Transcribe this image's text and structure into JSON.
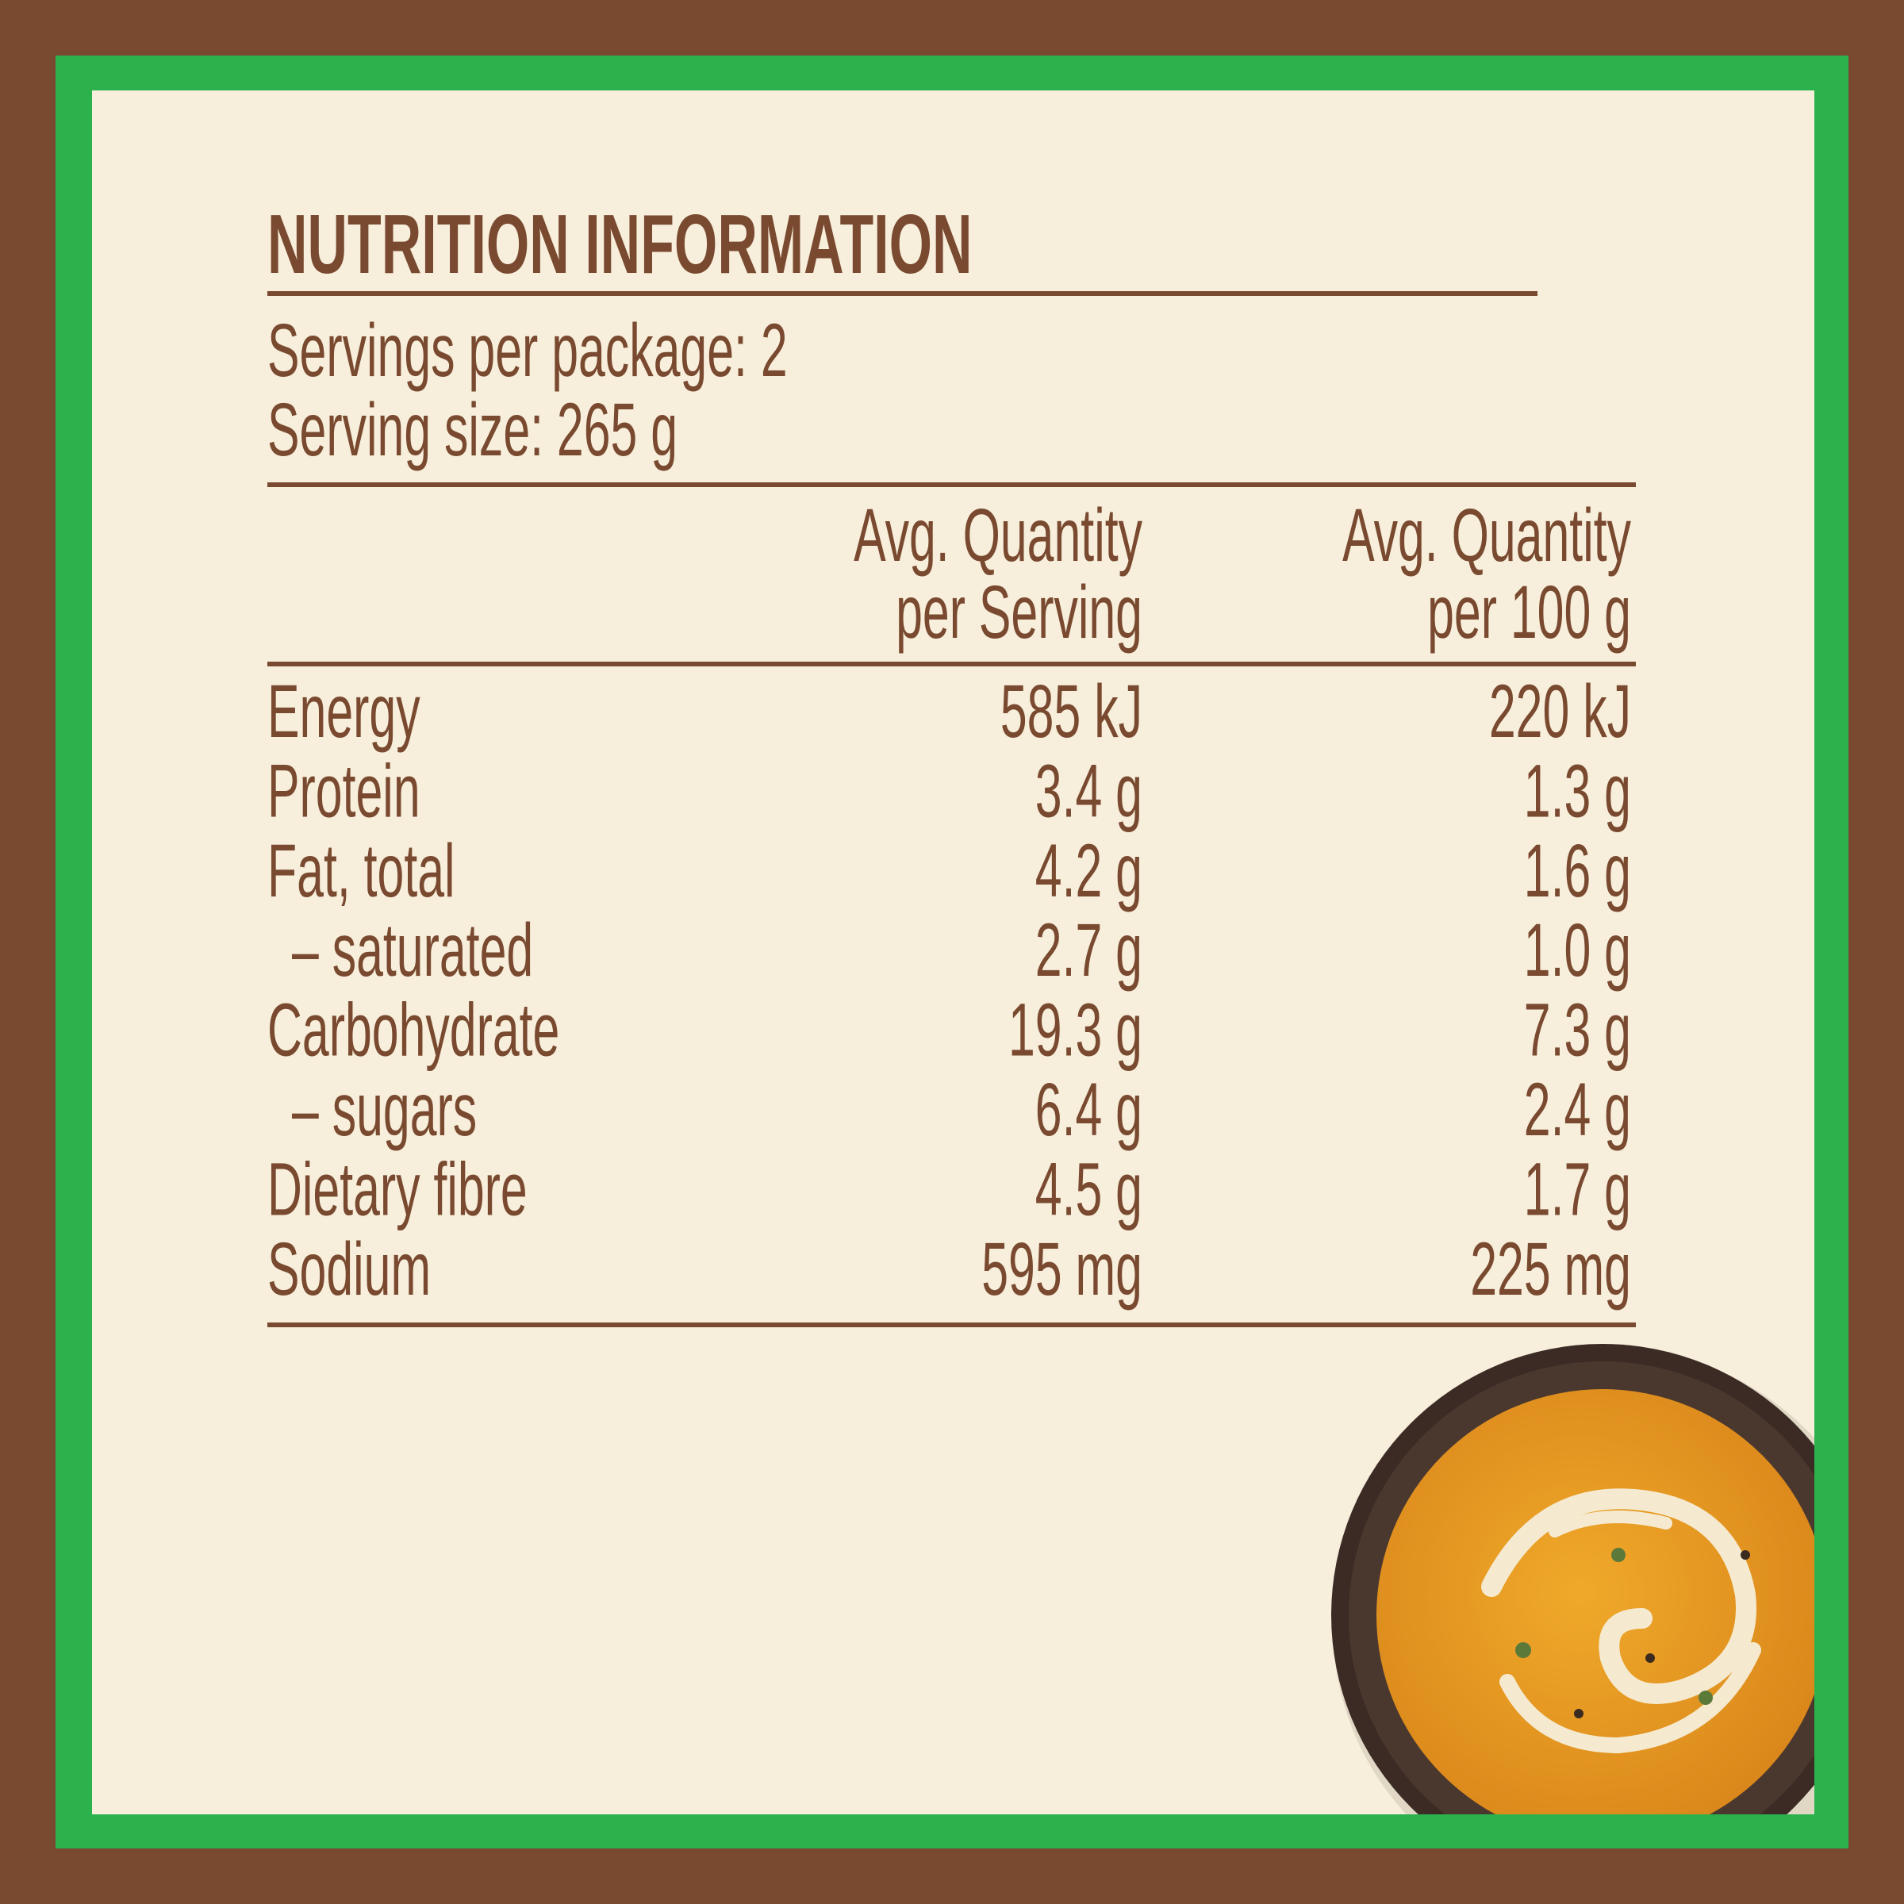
{
  "title": "NUTRITION INFORMATION",
  "servings_per_package": "Servings per package: 2",
  "serving_size": "Serving size: 265 g",
  "table": {
    "headers": [
      [
        "Avg. Quantity",
        "per Serving"
      ],
      [
        "Avg. Quantity",
        "per 100 g"
      ]
    ],
    "rows": [
      [
        "Energy",
        "585 kJ",
        "220 kJ"
      ],
      [
        "Protein",
        "3.4 g",
        "1.3 g"
      ],
      [
        "Fat, total",
        "4.2 g",
        "1.6 g"
      ],
      [
        "– saturated",
        "2.7 g",
        "1.0 g"
      ],
      [
        "Carbohydrate",
        "19.3 g",
        "7.3 g"
      ],
      [
        "– sugars",
        "6.4 g",
        "2.4 g"
      ],
      [
        "Dietary fibre",
        "4.5 g",
        "1.7 g"
      ],
      [
        "Sodium",
        "595 mg",
        "225 mg"
      ]
    ]
  }
}
